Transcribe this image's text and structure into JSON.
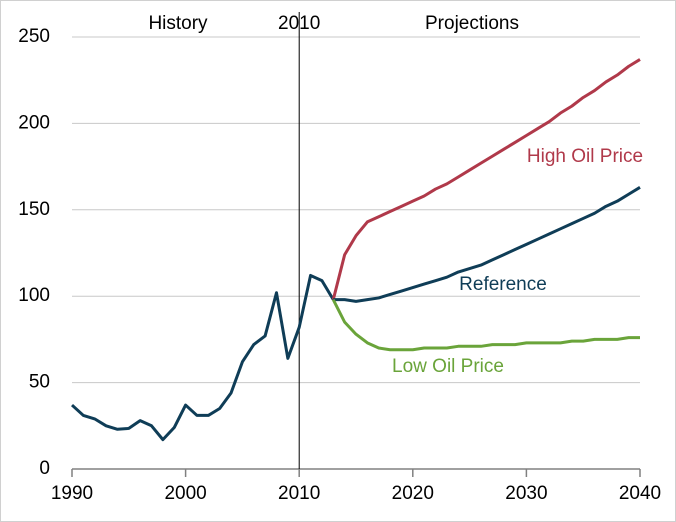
{
  "chart_data": {
    "type": "line",
    "annotations": [
      "History",
      "Projections"
    ],
    "divider": 2010,
    "x": [
      1990,
      1991,
      1992,
      1993,
      1994,
      1995,
      1996,
      1997,
      1998,
      1999,
      2000,
      2001,
      2002,
      2003,
      2004,
      2005,
      2006,
      2007,
      2008,
      2009,
      2010,
      2011,
      2012,
      2013,
      2014,
      2015,
      2016,
      2017,
      2018,
      2019,
      2020,
      2021,
      2022,
      2023,
      2024,
      2025,
      2026,
      2027,
      2028,
      2029,
      2030,
      2031,
      2032,
      2033,
      2034,
      2035,
      2036,
      2037,
      2038,
      2039,
      2040
    ],
    "series": [
      {
        "color": "#0f3d57",
        "values": [
          37,
          31,
          29,
          25,
          23,
          23.5,
          28,
          25,
          17,
          24,
          37,
          31,
          31,
          35,
          44,
          62,
          72,
          77,
          102,
          64,
          82,
          112,
          109,
          98,
          null,
          null,
          null,
          null,
          null,
          null,
          null,
          null,
          null,
          null,
          null,
          null,
          null,
          null,
          null,
          null,
          null,
          null,
          null,
          null,
          null,
          null,
          null,
          null,
          null,
          null,
          null
        ]
      },
      {
        "name": "High Oil Price",
        "color": "#b0394a",
        "values": [
          null,
          null,
          null,
          null,
          null,
          null,
          null,
          null,
          null,
          null,
          null,
          null,
          null,
          null,
          null,
          null,
          null,
          null,
          null,
          null,
          null,
          null,
          null,
          98,
          124,
          135,
          143,
          146,
          149,
          152,
          155,
          158,
          162,
          165,
          169,
          173,
          177,
          181,
          185,
          189,
          193,
          197,
          201,
          206,
          210,
          215,
          219,
          224,
          228,
          233,
          237
        ]
      },
      {
        "name": "Reference",
        "color": "#0f3d57",
        "values": [
          null,
          null,
          null,
          null,
          null,
          null,
          null,
          null,
          null,
          null,
          null,
          null,
          null,
          null,
          null,
          null,
          null,
          null,
          null,
          null,
          null,
          null,
          null,
          98,
          98,
          97,
          98,
          99,
          101,
          103,
          105,
          107,
          109,
          111,
          114,
          116,
          118,
          121,
          124,
          127,
          130,
          133,
          136,
          139,
          142,
          145,
          148,
          152,
          155,
          159,
          163
        ]
      },
      {
        "name": "Low Oil Price",
        "color": "#6aa43a",
        "values": [
          null,
          null,
          null,
          null,
          null,
          null,
          null,
          null,
          null,
          null,
          null,
          null,
          null,
          null,
          null,
          null,
          null,
          null,
          null,
          null,
          null,
          null,
          null,
          98,
          85,
          78,
          73,
          70,
          69,
          69,
          69,
          70,
          70,
          70,
          71,
          71,
          71,
          72,
          72,
          72,
          73,
          73,
          73,
          73,
          74,
          74,
          75,
          75,
          75,
          76,
          76
        ]
      }
    ],
    "xlim": [
      1990,
      2040
    ],
    "xticks": [
      1990,
      2000,
      2010,
      2020,
      2030,
      2040
    ],
    "ylim": [
      0,
      250
    ],
    "yticks": [
      0,
      50,
      100,
      150,
      200,
      250
    ],
    "grid": true
  }
}
